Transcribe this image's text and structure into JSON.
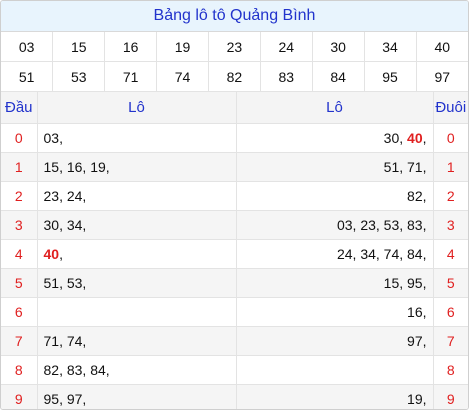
{
  "title": "Bảng lô tô Quảng Bình",
  "numbers_row1": [
    "03",
    "15",
    "16",
    "19",
    "23",
    "24",
    "30",
    "34",
    "40"
  ],
  "numbers_row2": [
    "51",
    "53",
    "71",
    "74",
    "82",
    "83",
    "84",
    "95",
    "97"
  ],
  "headers": {
    "dau": "Đầu",
    "lo_left": "Lô",
    "lo_right": "Lô",
    "duoi": "Đuôi"
  },
  "rows": [
    {
      "dau": "0",
      "left": [
        {
          "t": "03,"
        }
      ],
      "right": [
        {
          "t": "30, "
        },
        {
          "t": "40",
          "hl": true
        },
        {
          "t": ","
        }
      ],
      "duoi": "0"
    },
    {
      "dau": "1",
      "left": [
        {
          "t": "15, 16, 19,"
        }
      ],
      "right": [
        {
          "t": "51, 71,"
        }
      ],
      "duoi": "1"
    },
    {
      "dau": "2",
      "left": [
        {
          "t": "23, 24,"
        }
      ],
      "right": [
        {
          "t": "82,"
        }
      ],
      "duoi": "2"
    },
    {
      "dau": "3",
      "left": [
        {
          "t": "30, 34,"
        }
      ],
      "right": [
        {
          "t": "03, 23, 53, 83,"
        }
      ],
      "duoi": "3"
    },
    {
      "dau": "4",
      "left": [
        {
          "t": "40",
          "hl": true
        },
        {
          "t": ","
        }
      ],
      "right": [
        {
          "t": "24, 34, 74, 84,"
        }
      ],
      "duoi": "4"
    },
    {
      "dau": "5",
      "left": [
        {
          "t": "51, 53,"
        }
      ],
      "right": [
        {
          "t": "15, 95,"
        }
      ],
      "duoi": "5"
    },
    {
      "dau": "6",
      "left": [],
      "right": [
        {
          "t": "16,"
        }
      ],
      "duoi": "6"
    },
    {
      "dau": "7",
      "left": [
        {
          "t": "71, 74,"
        }
      ],
      "right": [
        {
          "t": "97,"
        }
      ],
      "duoi": "7"
    },
    {
      "dau": "8",
      "left": [
        {
          "t": "82, 83, 84,"
        }
      ],
      "right": [],
      "duoi": "8"
    },
    {
      "dau": "9",
      "left": [
        {
          "t": "95, 97,"
        }
      ],
      "right": [
        {
          "t": "19,"
        }
      ],
      "duoi": "9"
    }
  ],
  "colors": {
    "title_bg": "#e8f4fd",
    "title_text": "#2233cc",
    "highlight": "#e02020"
  }
}
